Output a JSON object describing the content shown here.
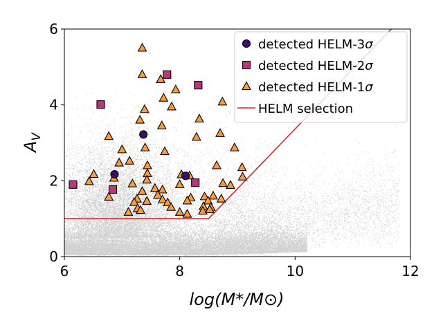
{
  "chart_data": {
    "type": "scatter",
    "xlabel": "log(M*/M⊙)",
    "ylabel": "A_V",
    "xlim": [
      6,
      12
    ],
    "ylim": [
      0,
      6
    ],
    "xticks": [
      6,
      8,
      10,
      12
    ],
    "yticks": [
      0,
      2,
      4,
      6
    ],
    "xtick_labels": [
      "6",
      "8",
      "10",
      "12"
    ],
    "ytick_labels": [
      "0",
      "2",
      "4",
      "6"
    ],
    "legend_position": "top-right",
    "background_population": {
      "name": "all galaxies",
      "color": "#000000",
      "approx_count": 60000,
      "x_range": [
        6.0,
        11.8
      ],
      "y_range": [
        0.0,
        5.2
      ],
      "density_peak": {
        "x": 7.2,
        "y": 0.35
      }
    },
    "series": [
      {
        "name": "detected HELM-3σ",
        "label_prefix": "detected HELM-3",
        "label_suffix": "σ",
        "marker": "circle",
        "color": "#3b0f70",
        "points": [
          [
            6.87,
            2.17
          ],
          [
            7.37,
            3.22
          ],
          [
            8.1,
            2.13
          ]
        ]
      },
      {
        "name": "detected HELM-2σ",
        "label_prefix": "detected HELM-2",
        "label_suffix": "σ",
        "marker": "square",
        "color": "#b73779",
        "points": [
          [
            6.15,
            1.9
          ],
          [
            6.63,
            4.01
          ],
          [
            6.84,
            1.77
          ],
          [
            7.78,
            4.8
          ],
          [
            8.27,
            1.95
          ],
          [
            8.32,
            4.52
          ]
        ]
      },
      {
        "name": "detected HELM-1σ",
        "label_prefix": "detected HELM-1",
        "label_suffix": "σ",
        "marker": "triangle",
        "color": "#fd9a3a",
        "points": [
          [
            7.35,
            5.5
          ],
          [
            7.35,
            4.8
          ],
          [
            7.67,
            4.67
          ],
          [
            7.93,
            4.4
          ],
          [
            8.74,
            4.08
          ],
          [
            7.72,
            4.18
          ],
          [
            7.86,
            3.95
          ],
          [
            7.39,
            3.88
          ],
          [
            7.31,
            3.6
          ],
          [
            7.69,
            3.45
          ],
          [
            8.34,
            3.63
          ],
          [
            8.7,
            3.25
          ],
          [
            6.77,
            3.17
          ],
          [
            8.29,
            3.15
          ],
          [
            7.4,
            2.87
          ],
          [
            8.95,
            2.87
          ],
          [
            7.0,
            2.82
          ],
          [
            7.74,
            2.77
          ],
          [
            6.95,
            2.47
          ],
          [
            7.13,
            2.52
          ],
          [
            7.44,
            2.4
          ],
          [
            8.64,
            2.4
          ],
          [
            9.08,
            2.35
          ],
          [
            6.51,
            2.17
          ],
          [
            7.44,
            2.19
          ],
          [
            8.03,
            2.16
          ],
          [
            6.86,
            2.07
          ],
          [
            7.43,
            2.02
          ],
          [
            9.09,
            2.1
          ],
          [
            8.17,
            2.13
          ],
          [
            6.43,
            1.98
          ],
          [
            7.18,
            1.92
          ],
          [
            8.0,
            1.9
          ],
          [
            7.7,
            1.76
          ],
          [
            8.75,
            1.93
          ],
          [
            8.88,
            1.88
          ],
          [
            7.35,
            1.72
          ],
          [
            7.57,
            1.8
          ],
          [
            8.43,
            1.58
          ],
          [
            8.58,
            1.6
          ],
          [
            7.62,
            1.62
          ],
          [
            6.77,
            1.57
          ],
          [
            7.26,
            1.52
          ],
          [
            7.7,
            1.5
          ],
          [
            8.19,
            1.55
          ],
          [
            8.72,
            1.52
          ],
          [
            7.43,
            1.46
          ],
          [
            7.21,
            1.43
          ],
          [
            7.79,
            1.42
          ],
          [
            8.13,
            1.47
          ],
          [
            8.49,
            1.47
          ],
          [
            7.27,
            1.27
          ],
          [
            7.85,
            1.3
          ],
          [
            8.41,
            1.32
          ],
          [
            8.54,
            1.3
          ],
          [
            7.11,
            1.17
          ],
          [
            7.32,
            1.22
          ],
          [
            8.0,
            1.17
          ],
          [
            8.13,
            1.12
          ],
          [
            8.4,
            1.2
          ],
          [
            8.52,
            1.24
          ]
        ]
      },
      {
        "name": "HELM selection",
        "marker": "line",
        "color": "#d62728",
        "points": [
          [
            6.0,
            1.0
          ],
          [
            8.5,
            1.0
          ],
          [
            11.67,
            6.0
          ]
        ]
      }
    ]
  }
}
